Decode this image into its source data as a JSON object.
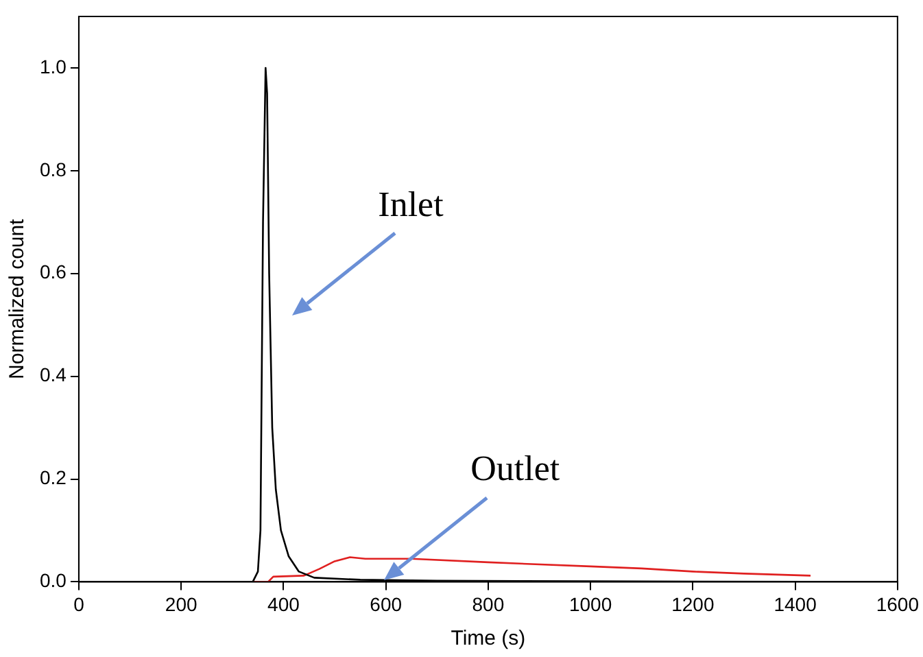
{
  "chart_data": {
    "type": "line",
    "xlabel": "Time (s)",
    "ylabel": "Normalized count",
    "xlim": [
      0,
      1600
    ],
    "ylim": [
      0,
      1.1
    ],
    "xticks": [
      0,
      200,
      400,
      600,
      800,
      1000,
      1200,
      1400,
      1600
    ],
    "yticks": [
      {
        "value": 0,
        "label": "0.0"
      },
      {
        "value": 0.2,
        "label": "0.2"
      },
      {
        "value": 0.4,
        "label": "0.4"
      },
      {
        "value": 0.6,
        "label": "0.6"
      },
      {
        "value": 0.8,
        "label": "0.8"
      },
      {
        "value": 1,
        "label": "1.0"
      }
    ],
    "grid": false,
    "legend": false,
    "marker": "none",
    "line_style": "solid",
    "series": [
      {
        "color": "#000000",
        "x": [
          0,
          340,
          350,
          355,
          360,
          365,
          368,
          372,
          378,
          385,
          395,
          410,
          430,
          460,
          550,
          700,
          1000,
          1430
        ],
        "values": [
          0,
          0,
          0.02,
          0.1,
          0.7,
          1.0,
          0.95,
          0.6,
          0.3,
          0.18,
          0.1,
          0.05,
          0.02,
          0.008,
          0.004,
          0.002,
          0.001,
          0
        ]
      },
      {
        "color": "#e02020",
        "x": [
          0,
          370,
          380,
          440,
          470,
          500,
          530,
          560,
          650,
          800,
          1000,
          1100,
          1200,
          1300,
          1430
        ],
        "values": [
          0,
          0,
          0.01,
          0.012,
          0.025,
          0.04,
          0.048,
          0.045,
          0.045,
          0.038,
          0.03,
          0.026,
          0.02,
          0.016,
          0.012
        ]
      }
    ],
    "annotations": [
      "Inlet",
      "Outlet"
    ]
  }
}
